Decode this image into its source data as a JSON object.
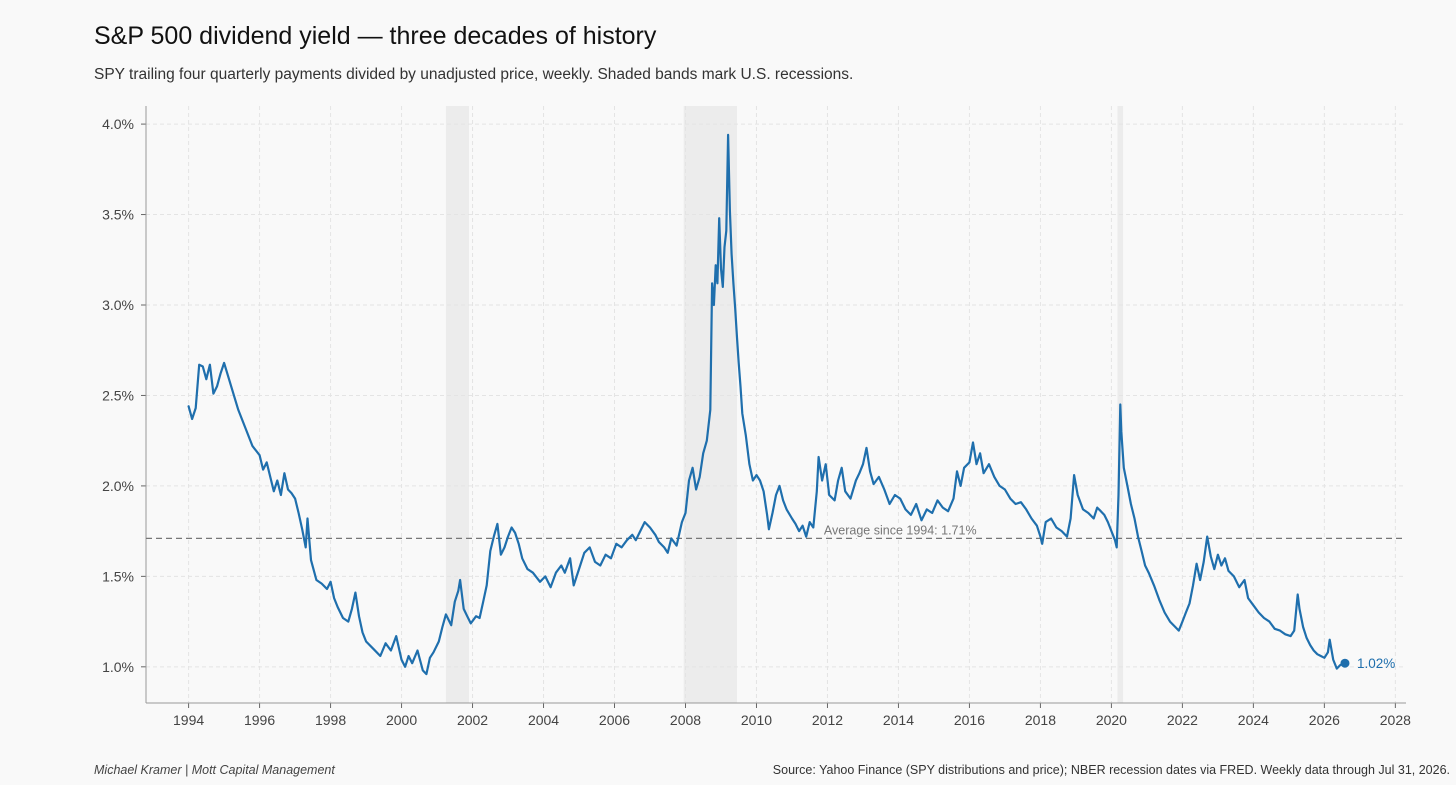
{
  "header": {
    "title": "S&P 500 dividend yield — three decades of history",
    "subtitle": "SPY trailing four quarterly payments divided by unadjusted price, weekly. Shaded bands mark U.S. recessions."
  },
  "footer": {
    "credit": "Michael Kramer  |  Mott Capital Management",
    "source": "Source: Yahoo Finance (SPY distributions and price); NBER recession dates via FRED. Weekly data through Jul 31, 2026."
  },
  "colors": {
    "line": "#1f6fad",
    "recession": "#ececec",
    "average": "#777777",
    "grid": "#e4e4e4",
    "background": "#f9f9f9"
  },
  "chart_data": {
    "type": "line",
    "title": "S&P 500 dividend yield — three decades of history",
    "xlabel": "",
    "ylabel": "",
    "xlim": [
      1992.8,
      2028.3
    ],
    "ylim": [
      0.8,
      4.1
    ],
    "x_ticks": [
      1994,
      1996,
      1998,
      2000,
      2002,
      2004,
      2006,
      2008,
      2010,
      2012,
      2014,
      2016,
      2018,
      2020,
      2022,
      2024,
      2026,
      2028
    ],
    "y_ticks": [
      {
        "value": 1.0,
        "label": "1.0%"
      },
      {
        "value": 1.5,
        "label": "1.5%"
      },
      {
        "value": 2.0,
        "label": "2.0%"
      },
      {
        "value": 2.5,
        "label": "2.5%"
      },
      {
        "value": 3.0,
        "label": "3.0%"
      },
      {
        "value": 3.5,
        "label": "3.5%"
      },
      {
        "value": 4.0,
        "label": "4.0%"
      }
    ],
    "grid": true,
    "recessions": [
      [
        2001.25,
        2001.9
      ],
      [
        2007.95,
        2009.45
      ],
      [
        2020.17,
        2020.33
      ]
    ],
    "average": {
      "value": 1.71,
      "label": "Average since 1994: 1.71%"
    },
    "end_label": "1.02%",
    "series": [
      {
        "name": "",
        "points": [
          [
            1994.0,
            2.44
          ],
          [
            1994.1,
            2.37
          ],
          [
            1994.2,
            2.43
          ],
          [
            1994.3,
            2.67
          ],
          [
            1994.4,
            2.66
          ],
          [
            1994.5,
            2.59
          ],
          [
            1994.6,
            2.67
          ],
          [
            1994.7,
            2.51
          ],
          [
            1994.8,
            2.55
          ],
          [
            1994.9,
            2.62
          ],
          [
            1995.0,
            2.68
          ],
          [
            1995.2,
            2.55
          ],
          [
            1995.4,
            2.42
          ],
          [
            1995.6,
            2.32
          ],
          [
            1995.8,
            2.22
          ],
          [
            1996.0,
            2.17
          ],
          [
            1996.1,
            2.09
          ],
          [
            1996.2,
            2.13
          ],
          [
            1996.4,
            1.97
          ],
          [
            1996.5,
            2.03
          ],
          [
            1996.6,
            1.95
          ],
          [
            1996.7,
            2.07
          ],
          [
            1996.8,
            1.98
          ],
          [
            1996.9,
            1.96
          ],
          [
            1997.0,
            1.93
          ],
          [
            1997.1,
            1.85
          ],
          [
            1997.2,
            1.76
          ],
          [
            1997.3,
            1.66
          ],
          [
            1997.35,
            1.82
          ],
          [
            1997.45,
            1.59
          ],
          [
            1997.6,
            1.48
          ],
          [
            1997.75,
            1.46
          ],
          [
            1997.9,
            1.43
          ],
          [
            1998.0,
            1.47
          ],
          [
            1998.1,
            1.38
          ],
          [
            1998.2,
            1.33
          ],
          [
            1998.35,
            1.27
          ],
          [
            1998.5,
            1.25
          ],
          [
            1998.6,
            1.32
          ],
          [
            1998.7,
            1.41
          ],
          [
            1998.8,
            1.28
          ],
          [
            1998.9,
            1.19
          ],
          [
            1999.0,
            1.14
          ],
          [
            1999.2,
            1.1
          ],
          [
            1999.4,
            1.06
          ],
          [
            1999.55,
            1.13
          ],
          [
            1999.7,
            1.09
          ],
          [
            1999.85,
            1.17
          ],
          [
            2000.0,
            1.04
          ],
          [
            2000.1,
            1.0
          ],
          [
            2000.2,
            1.06
          ],
          [
            2000.3,
            1.02
          ],
          [
            2000.45,
            1.09
          ],
          [
            2000.6,
            0.98
          ],
          [
            2000.7,
            0.96
          ],
          [
            2000.8,
            1.05
          ],
          [
            2000.9,
            1.08
          ],
          [
            2001.05,
            1.14
          ],
          [
            2001.15,
            1.22
          ],
          [
            2001.25,
            1.29
          ],
          [
            2001.4,
            1.23
          ],
          [
            2001.5,
            1.36
          ],
          [
            2001.6,
            1.42
          ],
          [
            2001.65,
            1.48
          ],
          [
            2001.75,
            1.32
          ],
          [
            2001.85,
            1.28
          ],
          [
            2001.95,
            1.24
          ],
          [
            2002.1,
            1.28
          ],
          [
            2002.2,
            1.27
          ],
          [
            2002.3,
            1.36
          ],
          [
            2002.4,
            1.45
          ],
          [
            2002.5,
            1.64
          ],
          [
            2002.6,
            1.72
          ],
          [
            2002.7,
            1.79
          ],
          [
            2002.8,
            1.62
          ],
          [
            2002.9,
            1.66
          ],
          [
            2003.0,
            1.72
          ],
          [
            2003.1,
            1.77
          ],
          [
            2003.2,
            1.74
          ],
          [
            2003.3,
            1.68
          ],
          [
            2003.4,
            1.6
          ],
          [
            2003.55,
            1.54
          ],
          [
            2003.7,
            1.52
          ],
          [
            2003.9,
            1.47
          ],
          [
            2004.05,
            1.5
          ],
          [
            2004.2,
            1.44
          ],
          [
            2004.35,
            1.52
          ],
          [
            2004.5,
            1.56
          ],
          [
            2004.6,
            1.52
          ],
          [
            2004.75,
            1.6
          ],
          [
            2004.85,
            1.45
          ],
          [
            2005.0,
            1.54
          ],
          [
            2005.15,
            1.63
          ],
          [
            2005.3,
            1.66
          ],
          [
            2005.45,
            1.58
          ],
          [
            2005.6,
            1.56
          ],
          [
            2005.75,
            1.62
          ],
          [
            2005.9,
            1.6
          ],
          [
            2006.05,
            1.68
          ],
          [
            2006.2,
            1.66
          ],
          [
            2006.35,
            1.7
          ],
          [
            2006.5,
            1.73
          ],
          [
            2006.6,
            1.7
          ],
          [
            2006.7,
            1.74
          ],
          [
            2006.85,
            1.8
          ],
          [
            2007.0,
            1.77
          ],
          [
            2007.15,
            1.73
          ],
          [
            2007.25,
            1.69
          ],
          [
            2007.4,
            1.66
          ],
          [
            2007.5,
            1.63
          ],
          [
            2007.6,
            1.71
          ],
          [
            2007.75,
            1.67
          ],
          [
            2007.9,
            1.8
          ],
          [
            2008.0,
            1.85
          ],
          [
            2008.1,
            2.03
          ],
          [
            2008.2,
            2.1
          ],
          [
            2008.3,
            1.98
          ],
          [
            2008.4,
            2.05
          ],
          [
            2008.5,
            2.18
          ],
          [
            2008.6,
            2.25
          ],
          [
            2008.7,
            2.42
          ],
          [
            2008.75,
            3.12
          ],
          [
            2008.8,
            3.0
          ],
          [
            2008.85,
            3.22
          ],
          [
            2008.9,
            3.12
          ],
          [
            2008.95,
            3.48
          ],
          [
            2009.0,
            3.2
          ],
          [
            2009.05,
            3.1
          ],
          [
            2009.1,
            3.32
          ],
          [
            2009.15,
            3.41
          ],
          [
            2009.2,
            3.94
          ],
          [
            2009.25,
            3.52
          ],
          [
            2009.3,
            3.28
          ],
          [
            2009.35,
            3.12
          ],
          [
            2009.4,
            2.98
          ],
          [
            2009.45,
            2.82
          ],
          [
            2009.5,
            2.68
          ],
          [
            2009.55,
            2.55
          ],
          [
            2009.6,
            2.4
          ],
          [
            2009.7,
            2.28
          ],
          [
            2009.8,
            2.12
          ],
          [
            2009.9,
            2.03
          ],
          [
            2010.0,
            2.06
          ],
          [
            2010.1,
            2.03
          ],
          [
            2010.2,
            1.97
          ],
          [
            2010.3,
            1.84
          ],
          [
            2010.35,
            1.76
          ],
          [
            2010.45,
            1.85
          ],
          [
            2010.55,
            1.95
          ],
          [
            2010.65,
            2.0
          ],
          [
            2010.75,
            1.92
          ],
          [
            2010.85,
            1.87
          ],
          [
            2011.0,
            1.82
          ],
          [
            2011.1,
            1.79
          ],
          [
            2011.2,
            1.75
          ],
          [
            2011.3,
            1.78
          ],
          [
            2011.4,
            1.72
          ],
          [
            2011.5,
            1.8
          ],
          [
            2011.6,
            1.77
          ],
          [
            2011.7,
            1.97
          ],
          [
            2011.75,
            2.16
          ],
          [
            2011.85,
            2.03
          ],
          [
            2011.95,
            2.12
          ],
          [
            2012.05,
            1.95
          ],
          [
            2012.2,
            1.92
          ],
          [
            2012.3,
            2.03
          ],
          [
            2012.4,
            2.1
          ],
          [
            2012.5,
            1.97
          ],
          [
            2012.65,
            1.93
          ],
          [
            2012.8,
            2.03
          ],
          [
            2012.9,
            2.07
          ],
          [
            2013.0,
            2.12
          ],
          [
            2013.1,
            2.21
          ],
          [
            2013.2,
            2.08
          ],
          [
            2013.3,
            2.01
          ],
          [
            2013.45,
            2.05
          ],
          [
            2013.6,
            1.98
          ],
          [
            2013.75,
            1.9
          ],
          [
            2013.9,
            1.95
          ],
          [
            2014.05,
            1.93
          ],
          [
            2014.2,
            1.87
          ],
          [
            2014.35,
            1.84
          ],
          [
            2014.5,
            1.9
          ],
          [
            2014.65,
            1.81
          ],
          [
            2014.8,
            1.87
          ],
          [
            2014.95,
            1.85
          ],
          [
            2015.1,
            1.92
          ],
          [
            2015.25,
            1.88
          ],
          [
            2015.4,
            1.86
          ],
          [
            2015.55,
            1.93
          ],
          [
            2015.65,
            2.08
          ],
          [
            2015.75,
            2.0
          ],
          [
            2015.85,
            2.1
          ],
          [
            2016.0,
            2.13
          ],
          [
            2016.1,
            2.24
          ],
          [
            2016.2,
            2.12
          ],
          [
            2016.3,
            2.18
          ],
          [
            2016.4,
            2.07
          ],
          [
            2016.55,
            2.12
          ],
          [
            2016.7,
            2.05
          ],
          [
            2016.85,
            2.0
          ],
          [
            2017.0,
            1.98
          ],
          [
            2017.15,
            1.93
          ],
          [
            2017.3,
            1.9
          ],
          [
            2017.45,
            1.91
          ],
          [
            2017.6,
            1.87
          ],
          [
            2017.75,
            1.82
          ],
          [
            2017.9,
            1.78
          ],
          [
            2018.0,
            1.72
          ],
          [
            2018.05,
            1.68
          ],
          [
            2018.15,
            1.8
          ],
          [
            2018.3,
            1.82
          ],
          [
            2018.45,
            1.77
          ],
          [
            2018.6,
            1.75
          ],
          [
            2018.75,
            1.72
          ],
          [
            2018.85,
            1.82
          ],
          [
            2018.95,
            2.06
          ],
          [
            2019.05,
            1.95
          ],
          [
            2019.2,
            1.87
          ],
          [
            2019.35,
            1.85
          ],
          [
            2019.5,
            1.82
          ],
          [
            2019.6,
            1.88
          ],
          [
            2019.7,
            1.86
          ],
          [
            2019.8,
            1.84
          ],
          [
            2019.9,
            1.8
          ],
          [
            2020.0,
            1.75
          ],
          [
            2020.1,
            1.7
          ],
          [
            2020.15,
            1.66
          ],
          [
            2020.2,
            1.95
          ],
          [
            2020.25,
            2.45
          ],
          [
            2020.28,
            2.3
          ],
          [
            2020.35,
            2.1
          ],
          [
            2020.45,
            2.0
          ],
          [
            2020.55,
            1.9
          ],
          [
            2020.65,
            1.82
          ],
          [
            2020.75,
            1.72
          ],
          [
            2020.85,
            1.64
          ],
          [
            2020.95,
            1.56
          ],
          [
            2021.05,
            1.52
          ],
          [
            2021.2,
            1.45
          ],
          [
            2021.35,
            1.37
          ],
          [
            2021.5,
            1.3
          ],
          [
            2021.65,
            1.25
          ],
          [
            2021.8,
            1.22
          ],
          [
            2021.9,
            1.2
          ],
          [
            2022.0,
            1.25
          ],
          [
            2022.1,
            1.3
          ],
          [
            2022.2,
            1.35
          ],
          [
            2022.3,
            1.45
          ],
          [
            2022.4,
            1.57
          ],
          [
            2022.5,
            1.48
          ],
          [
            2022.6,
            1.58
          ],
          [
            2022.7,
            1.72
          ],
          [
            2022.8,
            1.61
          ],
          [
            2022.9,
            1.54
          ],
          [
            2023.0,
            1.62
          ],
          [
            2023.1,
            1.56
          ],
          [
            2023.2,
            1.6
          ],
          [
            2023.3,
            1.53
          ],
          [
            2023.45,
            1.5
          ],
          [
            2023.6,
            1.44
          ],
          [
            2023.75,
            1.48
          ],
          [
            2023.85,
            1.38
          ],
          [
            2024.0,
            1.34
          ],
          [
            2024.15,
            1.3
          ],
          [
            2024.3,
            1.27
          ],
          [
            2024.45,
            1.25
          ],
          [
            2024.6,
            1.21
          ],
          [
            2024.75,
            1.2
          ],
          [
            2024.9,
            1.18
          ],
          [
            2025.05,
            1.17
          ],
          [
            2025.15,
            1.2
          ],
          [
            2025.25,
            1.4
          ],
          [
            2025.3,
            1.32
          ],
          [
            2025.4,
            1.22
          ],
          [
            2025.5,
            1.16
          ],
          [
            2025.6,
            1.12
          ],
          [
            2025.7,
            1.09
          ],
          [
            2025.8,
            1.07
          ],
          [
            2025.9,
            1.06
          ],
          [
            2026.0,
            1.05
          ],
          [
            2026.1,
            1.08
          ],
          [
            2026.15,
            1.15
          ],
          [
            2026.25,
            1.04
          ],
          [
            2026.35,
            0.99
          ],
          [
            2026.45,
            1.01
          ],
          [
            2026.58,
            1.02
          ]
        ]
      }
    ]
  }
}
